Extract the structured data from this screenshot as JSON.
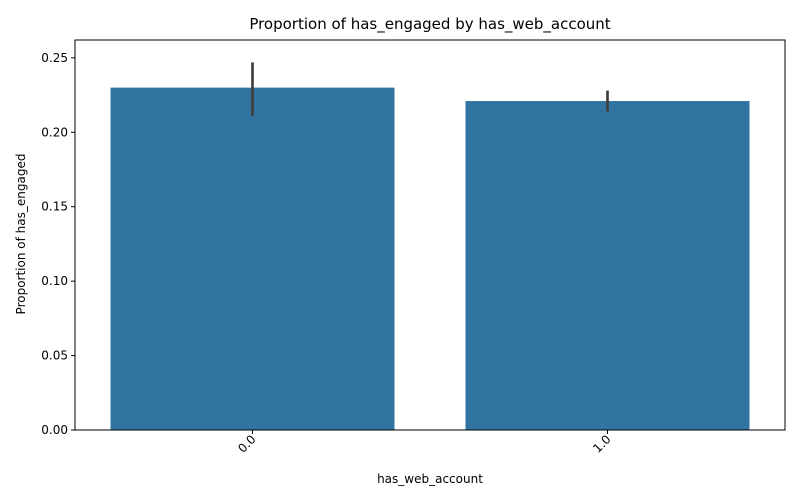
{
  "chart_data": {
    "type": "bar",
    "title": "Proportion of has_engaged by has_web_account",
    "xlabel": "has_web_account",
    "ylabel": "Proportion of has_engaged",
    "categories": [
      "0.0",
      "1.0"
    ],
    "values": [
      0.23,
      0.221
    ],
    "error_bars": [
      {
        "low": 0.211,
        "high": 0.247
      },
      {
        "low": 0.214,
        "high": 0.228
      }
    ],
    "ylim": [
      0,
      0.262
    ],
    "yticks": [
      0.0,
      0.05,
      0.1,
      0.15,
      0.2,
      0.25
    ],
    "ytick_labels": [
      "0.00",
      "0.05",
      "0.10",
      "0.15",
      "0.20",
      "0.25"
    ],
    "xtick_rotation": 45,
    "grid": false,
    "colors": {
      "bar": "#3274a1",
      "error_bar": "#3f3f3f",
      "axis": "#000000"
    }
  }
}
